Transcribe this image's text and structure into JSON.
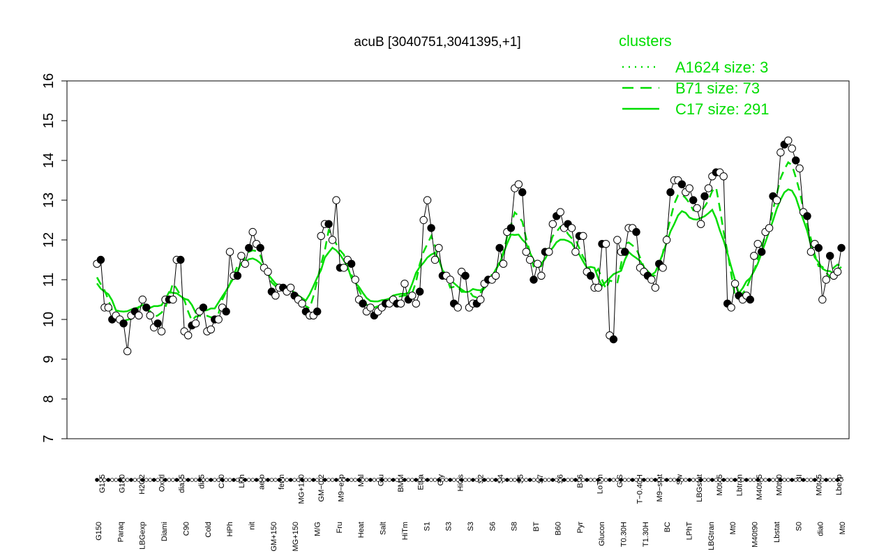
{
  "chart_data": {
    "type": "line",
    "title": "acuB [3040751,3041395,+1]",
    "xlabel": "",
    "ylabel": "",
    "ylim": [
      7,
      16
    ],
    "y_ticks": [
      7,
      8,
      9,
      10,
      11,
      12,
      13,
      14,
      15,
      16
    ],
    "x_tick_labels_upper": [
      "G135",
      "G180",
      "H2O2",
      "Oxctl",
      "dia15",
      "dia5",
      "C30",
      "LPh",
      "aero",
      "ferm",
      "MG+120",
      "GM−0.2",
      "M9−exp",
      "Mal",
      "Glu",
      "BMM",
      "Etha",
      "Gly",
      "HiOs",
      "S2",
      "S4",
      "S5",
      "S7",
      "S6",
      "B36",
      "LoTm",
      "G/S",
      "T−0.40H",
      "M9−stat",
      "Sw",
      "LBGstat",
      "M0t45",
      "Lbtran",
      "M40t45",
      "M0t90",
      "BI",
      "M0t45",
      "Lbexp"
    ],
    "x_tick_labels_lower": [
      "G150",
      "Paraq",
      "LBGexp",
      "Diami",
      "C90",
      "Cold",
      "HPh",
      "nit",
      "GM+150",
      "MG+150",
      "M/G",
      "Fru",
      "Heat",
      "Salt",
      "HiTm",
      "S1",
      "S3",
      "S3",
      "S6",
      "S8",
      "BT",
      "B60",
      "Pyr",
      "Glucon",
      "T0.30H",
      "T1.30H",
      "BC",
      "LPhT",
      "LBGtran",
      "Mt0",
      "M40t90",
      "Lbstat",
      "S0",
      "dia0",
      "Mt0"
    ],
    "legend": {
      "title": "clusters",
      "position": "top-right",
      "entries": [
        {
          "label": "A1624 size: 3",
          "style": "dotted"
        },
        {
          "label": "B71 size: 73",
          "style": "dashed"
        },
        {
          "label": "C17 size: 291",
          "style": "solid"
        }
      ]
    },
    "colors": {
      "cluster_lines": "#00dd00",
      "legend_text": "#00dd00",
      "points_fill_a": "#000000",
      "points_fill_b": "#ffffff"
    },
    "series": [
      {
        "name": "acuB",
        "values": [
          11.4,
          11.5,
          10.3,
          10.3,
          10.0,
          10.1,
          10.0,
          9.9,
          9.2,
          10.1,
          10.2,
          10.1,
          10.5,
          10.3,
          10.1,
          9.8,
          9.9,
          9.7,
          10.5,
          10.5,
          10.5,
          11.5,
          11.5,
          9.7,
          9.6,
          9.85,
          9.9,
          10.2,
          10.3,
          9.7,
          9.75,
          10.0,
          10.0,
          10.3,
          10.2,
          11.7,
          11.1,
          11.1,
          11.6,
          11.4,
          11.8,
          12.2,
          11.9,
          11.8,
          11.3,
          11.2,
          10.7,
          10.6,
          10.8,
          10.8,
          10.7,
          10.8,
          10.6,
          10.5,
          10.4,
          10.2,
          10.1,
          10.1,
          10.2,
          12.1,
          12.4,
          12.4,
          12.0,
          13.0,
          11.3,
          11.3,
          11.5,
          11.4,
          11.0,
          10.5,
          10.4,
          10.2,
          10.3,
          10.1,
          10.2,
          10.3,
          10.4,
          10.4,
          10.5,
          10.4,
          10.4,
          10.9,
          10.5,
          10.6,
          10.4,
          10.7,
          12.5,
          13.0,
          12.3,
          11.5,
          11.8,
          11.1,
          11.1,
          11.0,
          10.4,
          10.3,
          11.2,
          11.1,
          10.3,
          10.4,
          10.4,
          10.5,
          10.9,
          11.0,
          11.0,
          11.1,
          11.8,
          11.4,
          12.2,
          12.3,
          13.3,
          13.4,
          13.2,
          11.7,
          11.5,
          11.0,
          11.4,
          11.1,
          11.7,
          11.7,
          12.4,
          12.6,
          12.7,
          12.3,
          12.4,
          12.3,
          11.7,
          12.1,
          12.1,
          11.2,
          11.1,
          10.8,
          10.8,
          11.9,
          11.9,
          9.6,
          9.5,
          12.0,
          11.7,
          11.7,
          12.3,
          12.3,
          12.2,
          11.3,
          11.2,
          11.1,
          11.0,
          10.8,
          11.4,
          11.3,
          12.0,
          13.2,
          13.5,
          13.5,
          13.4,
          13.2,
          13.3,
          13.0,
          12.8,
          12.4,
          13.1,
          13.3,
          13.6,
          13.7,
          13.7,
          13.6,
          10.4,
          10.3,
          10.9,
          10.6,
          10.5,
          10.6,
          10.5,
          11.6,
          11.9,
          11.7,
          12.2,
          12.3,
          13.1,
          13.0,
          14.2,
          14.4,
          14.5,
          14.3,
          14.0,
          13.8,
          12.7,
          12.6,
          11.7,
          11.9,
          11.8,
          10.5,
          11.0,
          11.6,
          11.1,
          11.2,
          11.8
        ]
      }
    ]
  }
}
